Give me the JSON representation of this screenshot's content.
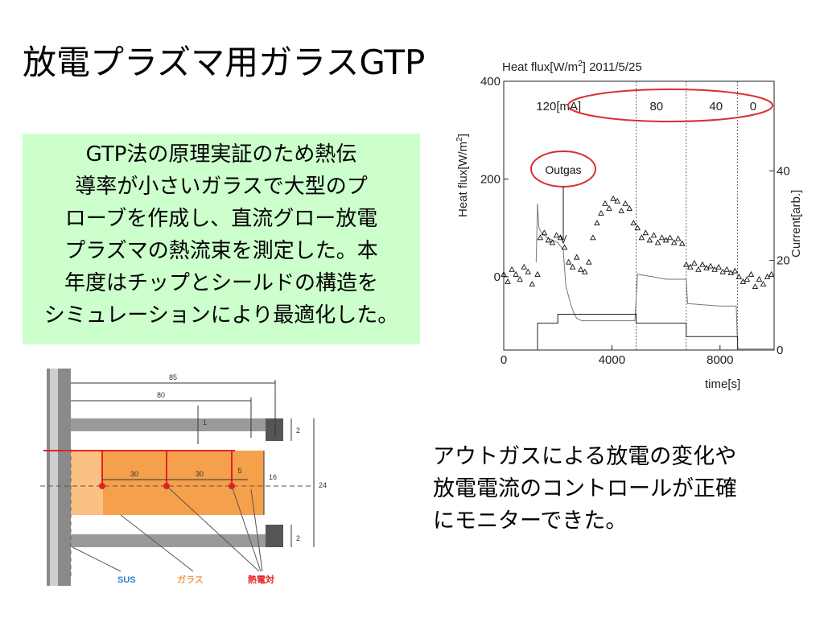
{
  "title": "放電プラズマ用ガラスGTP",
  "summary": {
    "lines": [
      "GTP法の原理実証のため熱伝",
      "導率が小さいガラスで大型のプ",
      "ローブを作成し、直流グロー放電",
      "プラズマの熱流束を測定した。本",
      "年度はチップとシールドの構造を",
      "シミュレーションにより最適化した。"
    ]
  },
  "result": {
    "lines": [
      "アウトガスによる放電の変化や",
      "放電電流のコントロールが正確",
      "にモニターできた。"
    ]
  },
  "chart_data": {
    "type": "scatter",
    "title_prefix": "Heat flux[W/m",
    "title_sup": "2",
    "title_suffix": "] 2011/5/25",
    "xlabel": "time[s]",
    "ylabel_prefix": "Heat flux[W/m",
    "ylabel_sup": "2",
    "ylabel_suffix": "]",
    "y2label": "Current[arb.]",
    "xlim": [
      0,
      10000
    ],
    "ylim": [
      -150,
      400
    ],
    "y2lim": [
      0,
      60
    ],
    "xticks": [
      "0",
      "4000",
      "8000"
    ],
    "xtick_values": [
      0,
      4000,
      8000
    ],
    "yticks": [
      "0",
      "200",
      "400"
    ],
    "ytick_values": [
      0,
      200,
      400
    ],
    "y2ticks": [
      "0",
      "20",
      "40"
    ],
    "y2tick_values": [
      0,
      20,
      40
    ],
    "current_labels": [
      "120[mA]",
      "80",
      "40",
      "0"
    ],
    "current_label_x": [
      1200,
      5400,
      7600,
      9100
    ],
    "annotation": "Outgas",
    "segment_boundaries": [
      4900,
      6750,
      8650
    ],
    "series": [
      {
        "marker": "triangle",
        "x": [
          0,
          150,
          300,
          450,
          600,
          750,
          900,
          1050,
          1250,
          1350,
          1500,
          1650,
          1800,
          1950,
          2100,
          2250,
          2400,
          2550,
          2700,
          2850,
          3000,
          3150,
          3300,
          3450,
          3600,
          3750,
          3900,
          4050,
          4200,
          4350,
          4500,
          4650,
          4800,
          4950,
          5100,
          5250,
          5400,
          5550,
          5700,
          5850,
          6000,
          6150,
          6300,
          6450,
          6600,
          6750,
          6900,
          7050,
          7200,
          7350,
          7500,
          7650,
          7800,
          7950,
          8100,
          8250,
          8400,
          8550,
          8700,
          8850,
          9000,
          9150,
          9300,
          9450,
          9600,
          9750,
          9900
        ],
        "y": [
          5,
          -10,
          15,
          5,
          -5,
          20,
          10,
          -15,
          5,
          80,
          90,
          75,
          70,
          85,
          80,
          60,
          30,
          20,
          40,
          15,
          10,
          30,
          80,
          110,
          130,
          150,
          140,
          160,
          155,
          135,
          150,
          140,
          110,
          100,
          80,
          90,
          75,
          85,
          70,
          80,
          75,
          80,
          70,
          78,
          68,
          25,
          20,
          28,
          15,
          25,
          18,
          22,
          15,
          20,
          10,
          15,
          8,
          12,
          0,
          -10,
          -5,
          5,
          -20,
          -5,
          -15,
          0,
          5
        ]
      },
      {
        "marker": "none",
        "name": "heat-flux-raw",
        "x": [
          1200,
          1250,
          1300,
          1400,
          1600,
          1800,
          2000,
          2200,
          2300,
          2400,
          2500,
          2600,
          2700,
          2800,
          2900,
          3000,
          4850,
          4950,
          5500,
          6000,
          6500,
          6750,
          6800,
          7500,
          8000,
          8600,
          8650,
          8700,
          10000
        ],
        "y": [
          30,
          150,
          100,
          90,
          80,
          75,
          70,
          55,
          -20,
          -40,
          -60,
          -75,
          -85,
          -88,
          -90,
          -90,
          -90,
          5,
          0,
          -5,
          -5,
          -5,
          -55,
          -58,
          -60,
          -60,
          -145,
          -148,
          -148
        ]
      },
      {
        "marker": "none",
        "name": "current",
        "x": [
          0,
          1250,
          1250,
          2000,
          2000,
          4900,
          4900,
          6750,
          6750,
          8650,
          8650,
          10000
        ],
        "y2": [
          0,
          0,
          6,
          6,
          8,
          8,
          6,
          6,
          3,
          3,
          0,
          0
        ]
      }
    ]
  },
  "diagram": {
    "dim_85": "85",
    "dim_80": "80",
    "dim_1": "1",
    "dim_2_top": "2",
    "dim_2_bottom": "2",
    "dim_16": "16",
    "dim_24": "24",
    "dim_30_a": "30",
    "dim_30_b": "30",
    "dim_5": "5",
    "label_sus": "SUS",
    "label_glass": "ガラス",
    "label_thermocouple": "熱電対",
    "colors": {
      "sus": "#2f7fd6",
      "glass": "#f29a4a",
      "thermocouple": "#e32222",
      "glass_fill": "#f5a04a"
    }
  }
}
